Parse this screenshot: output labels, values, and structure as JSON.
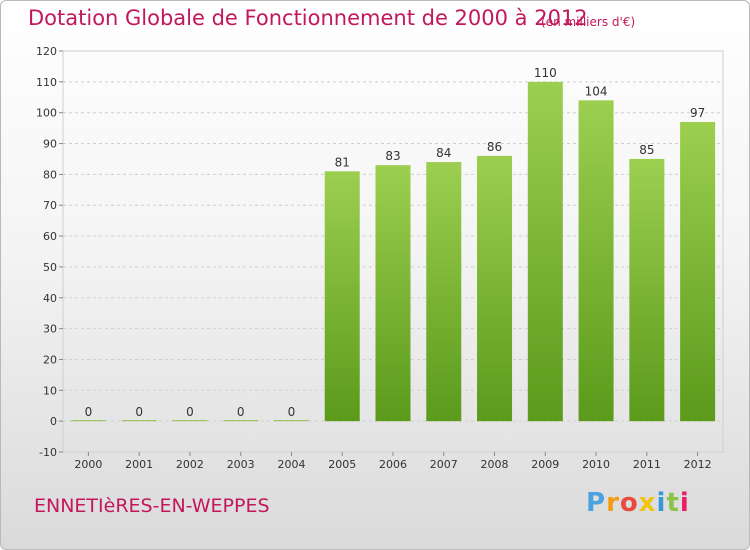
{
  "title": "Dotation Globale de Fonctionnement de 2000 à 2012",
  "unit_note": "(en milliers d'€)",
  "commune": "ENNETIèRES-EN-WEPPES",
  "logo": {
    "letters": [
      "P",
      "r",
      "o",
      "x",
      "i",
      "t",
      "i"
    ],
    "colors": [
      "#4aa3df",
      "#f39c12",
      "#e74c3c",
      "#f1c40f",
      "#3498db",
      "#8bc34a",
      "#e91e63"
    ]
  },
  "chart_data": {
    "type": "bar",
    "categories": [
      "2000",
      "2001",
      "2002",
      "2003",
      "2004",
      "2005",
      "2006",
      "2007",
      "2008",
      "2009",
      "2010",
      "2011",
      "2012"
    ],
    "values": [
      0,
      0,
      0,
      0,
      0,
      81,
      83,
      84,
      86,
      110,
      104,
      85,
      97
    ],
    "data_labels": [
      "0",
      "0",
      "0",
      "0",
      "0",
      "81",
      "83",
      "84",
      "86",
      "110",
      "104",
      "85",
      "97"
    ],
    "yticks": [
      -10,
      0,
      10,
      20,
      30,
      40,
      50,
      60,
      70,
      80,
      90,
      100,
      110,
      120
    ],
    "ylim": [
      -10,
      120
    ],
    "grid": true,
    "colors": {
      "bar_top": "#9ccf4f",
      "bar_bottom": "#5b9a1b",
      "title": "#c2185b"
    }
  }
}
